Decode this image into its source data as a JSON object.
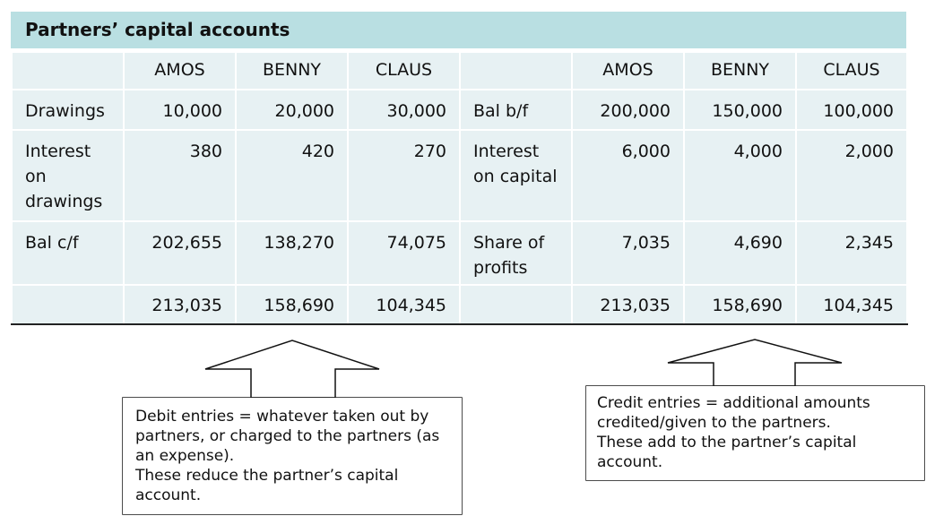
{
  "title": "Partners’ capital accounts",
  "headers": [
    "",
    "AMOS",
    "BENNY",
    "CLAUS",
    "",
    "AMOS",
    "BENNY",
    "CLAUS"
  ],
  "rows": [
    {
      "dr_label": "Drawings",
      "dr": [
        "10,000",
        "20,000",
        "30,000"
      ],
      "cr_label": "Bal b/f",
      "cr": [
        "200,000",
        "150,000",
        "100,000"
      ]
    },
    {
      "dr_label": "Interest on drawings",
      "dr": [
        "380",
        "420",
        "270"
      ],
      "cr_label": "Interest on capital",
      "cr": [
        "6,000",
        "4,000",
        "2,000"
      ]
    },
    {
      "dr_label": "Bal c/f",
      "dr": [
        "202,655",
        "138,270",
        "74,075"
      ],
      "cr_label": "Share of profits",
      "cr": [
        "7,035",
        "4,690",
        "2,345"
      ]
    }
  ],
  "totals": {
    "dr": [
      "213,035",
      "158,690",
      "104,345"
    ],
    "cr": [
      "213,035",
      "158,690",
      "104,345"
    ]
  },
  "debit_note": "Debit entries = whatever taken out by partners, or charged to the partners (as an expense).\nThese reduce the partner’s capital account.",
  "credit_note": "Credit entries = additional amounts credited/given to the partners.\nThese add to the partner’s capital account."
}
